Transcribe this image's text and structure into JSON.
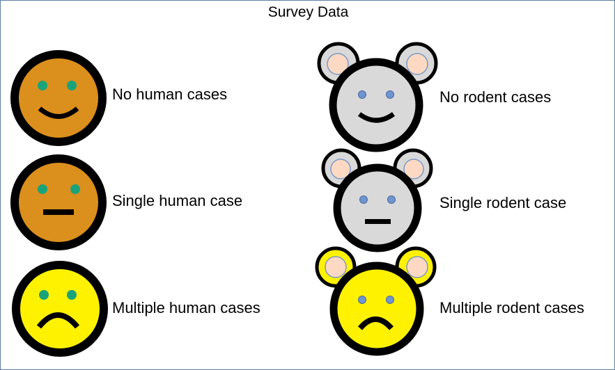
{
  "title": "Survey Data",
  "colors": {
    "outline": "#000000",
    "human_none": "#db8f1c",
    "human_single": "#db8f1c",
    "human_multiple": "#fff200",
    "rodent_face": "#d9d9d9",
    "rodent_multiple": "#fff200",
    "ear_inner": "#fdd9c3",
    "ear_ring": "#7b98c7",
    "human_eye": "#1aa37a",
    "rodent_eye": "#6f95d0"
  },
  "legend": {
    "human": [
      {
        "label": "No human cases",
        "expression": "smile",
        "icon": "happy-face-icon"
      },
      {
        "label": "Single human case",
        "expression": "neutral",
        "icon": "neutral-face-icon"
      },
      {
        "label": "Multiple human cases",
        "expression": "frown",
        "icon": "sad-face-icon"
      }
    ],
    "rodent": [
      {
        "label": "No rodent cases",
        "expression": "smile",
        "icon": "happy-mouse-icon"
      },
      {
        "label": "Single rodent case",
        "expression": "neutral",
        "icon": "neutral-mouse-icon"
      },
      {
        "label": "Multiple rodent cases",
        "expression": "frown",
        "icon": "sad-mouse-icon"
      }
    ]
  }
}
